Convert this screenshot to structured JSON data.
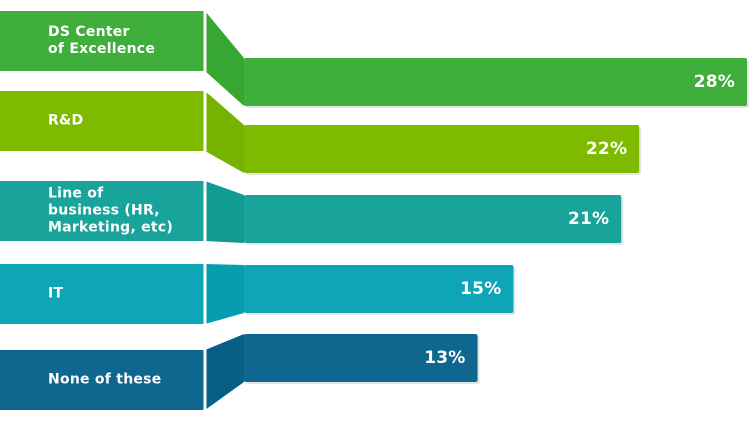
{
  "chart_data": {
    "type": "bar",
    "orientation": "horizontal",
    "categories": [
      "DS Center\nof Excellence",
      "R&D",
      "Line of\nbusiness (HR,\nMarketing, etc)",
      "IT",
      "None of these"
    ],
    "values": [
      28,
      22,
      21,
      15,
      13
    ],
    "value_labels": [
      "28%",
      "22%",
      "21%",
      "15%",
      "13%"
    ],
    "colors": [
      "#3FAE3A",
      "#7EBB00",
      "#18A49A",
      "#0EA6B6",
      "#0F668E"
    ],
    "title": "",
    "xlabel": "",
    "ylabel": "",
    "xlim": [
      0,
      28
    ],
    "grid": false,
    "legend": false
  }
}
